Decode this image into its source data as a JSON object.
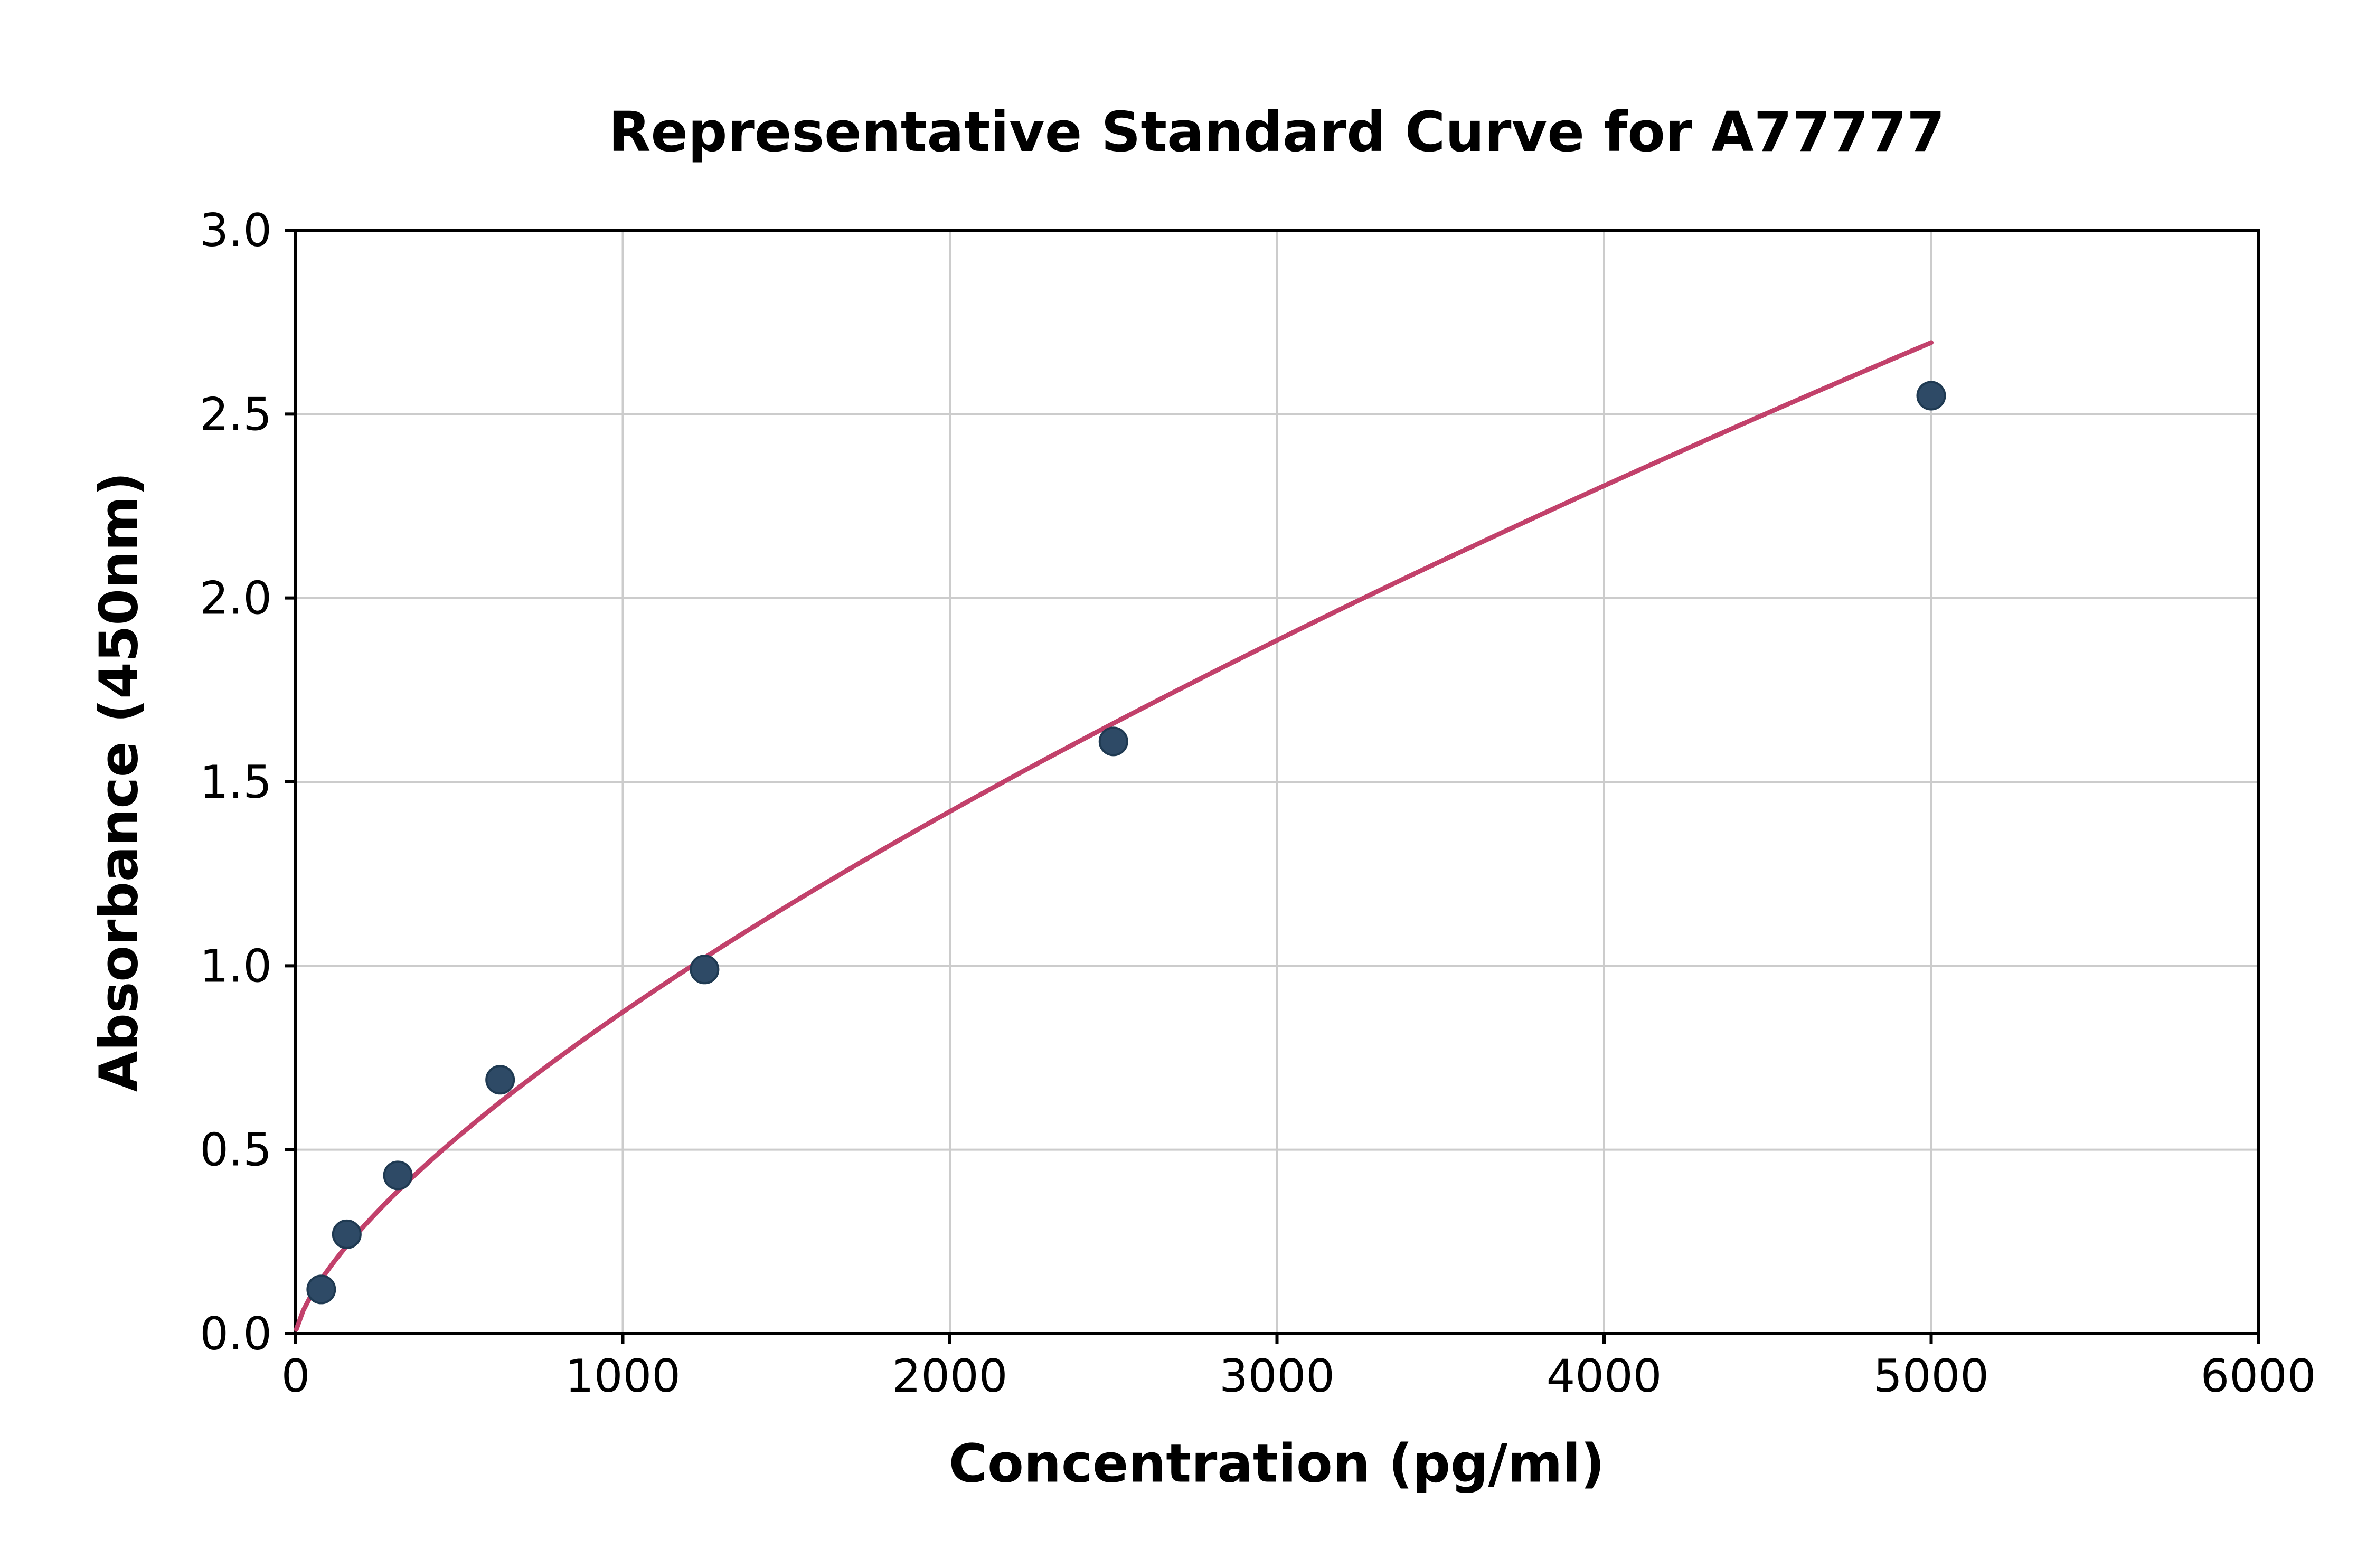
{
  "chart_data": {
    "type": "scatter",
    "title": "Representative Standard Curve for A77777",
    "xlabel": "Concentration (pg/ml)",
    "ylabel": "Absorbance (450nm)",
    "x": [
      78.1,
      156.3,
      312.5,
      625,
      1250,
      2500,
      5000
    ],
    "y": [
      0.12,
      0.27,
      0.43,
      0.69,
      0.99,
      1.61,
      2.55
    ],
    "xlim": [
      0,
      6000
    ],
    "ylim": [
      0,
      3
    ],
    "x_ticks": [
      0,
      1000,
      2000,
      3000,
      4000,
      5000,
      6000
    ],
    "y_ticks": [
      0,
      0.5,
      1,
      1.5,
      2,
      2.5,
      3
    ],
    "x_tick_labels": [
      "0",
      "1000",
      "2000",
      "3000",
      "4000",
      "5000",
      "6000"
    ],
    "y_tick_labels": [
      "0.0",
      "0.5",
      "1.0",
      "1.5",
      "2.0",
      "2.5",
      "3.0"
    ],
    "grid": true,
    "legend": "none",
    "fit": "power",
    "colors": {
      "point_fill": "#2e4a66",
      "point_edge": "#1f3a52",
      "curve": "#c2416b",
      "grid": "#cccccc",
      "axis": "#000000",
      "background": "#ffffff"
    }
  }
}
